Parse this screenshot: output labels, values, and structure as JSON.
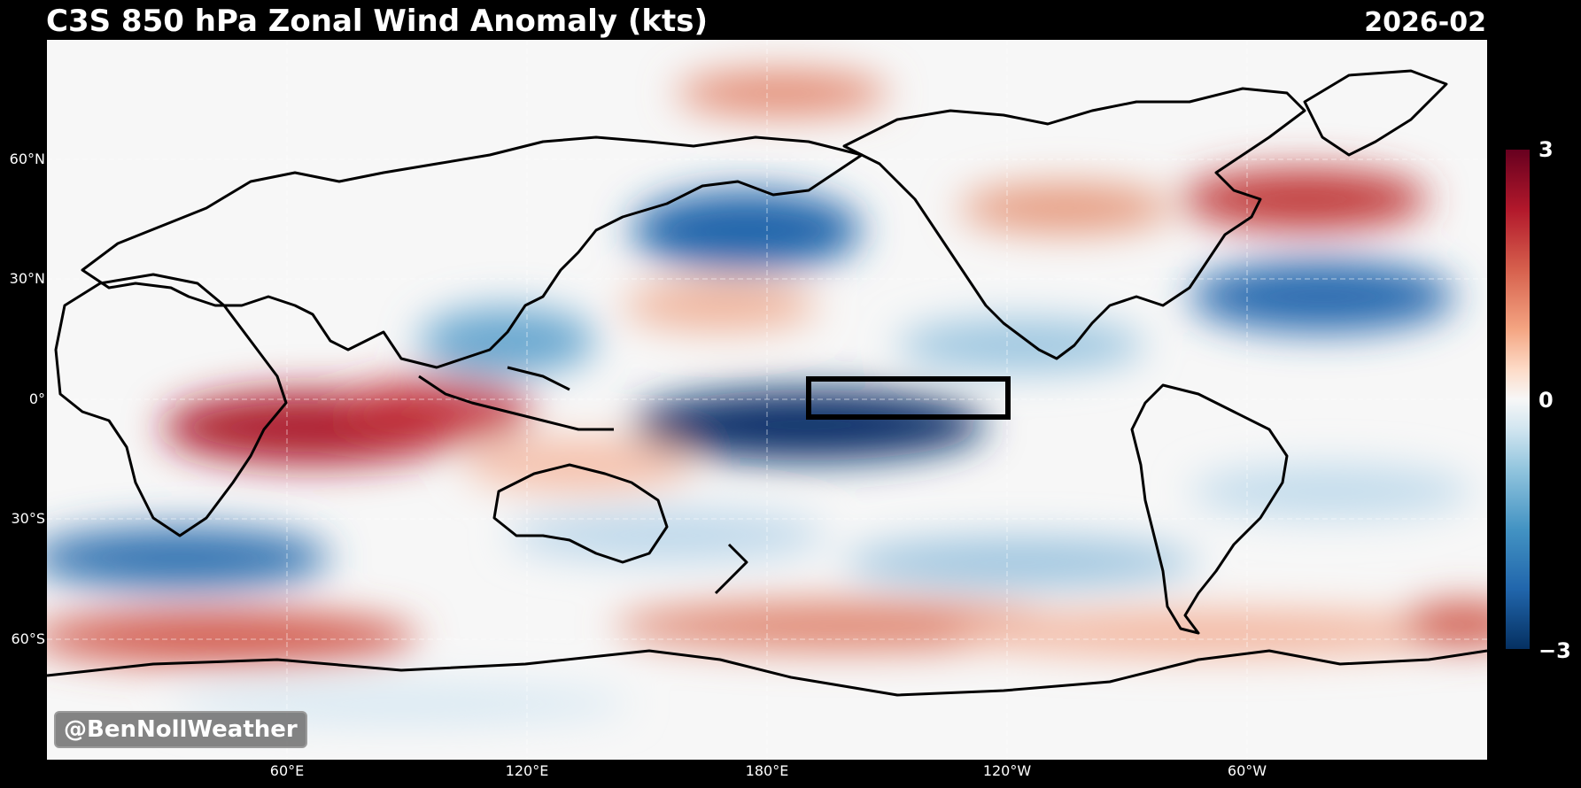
{
  "header": {
    "title": "C3S 850 hPa Zonal Wind Anomaly (kts)",
    "date": "2026-02"
  },
  "map": {
    "projection": "Plate Carree, centered on 180°",
    "variable": "850 hPa zonal wind anomaly",
    "units": "kts",
    "colormap": "RdBu_r",
    "gridlines": true,
    "highlight_box": {
      "lon_range": "~170°W to ~120°W",
      "lat_range": "~5°S to ~5°N"
    },
    "latitude_labels": [
      "60°N",
      "30°N",
      "0°",
      "30°S",
      "60°S"
    ],
    "longitude_labels": [
      "60°E",
      "120°E",
      "180°E",
      "120°W",
      "60°W"
    ]
  },
  "watermark": "@BenNollWeather",
  "colorbar": {
    "min": -3,
    "max": 3,
    "ticks": [
      "3",
      "0",
      "−3"
    ],
    "colors": {
      "high": "#67001f",
      "mid": "#f7f7f7",
      "low": "#053061"
    }
  }
}
